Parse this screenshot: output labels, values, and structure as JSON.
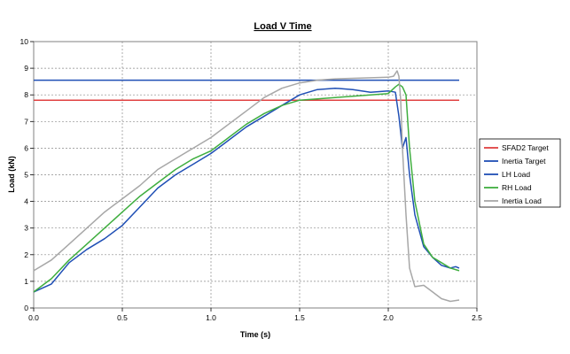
{
  "chart_data": {
    "type": "line",
    "title": "Load V Time",
    "xlabel": "Time (s)",
    "ylabel": "Load (kN)",
    "xlim": [
      0,
      2.5
    ],
    "ylim": [
      0,
      10
    ],
    "xticks": [
      "0.0",
      "0.5",
      "1.0",
      "1.5",
      "2.0",
      "2.5"
    ],
    "yticks": [
      "0",
      "1",
      "2",
      "3",
      "4",
      "5",
      "6",
      "7",
      "8",
      "9",
      "10"
    ],
    "grid": true,
    "legend_position": "right",
    "series": [
      {
        "name": "SFAD2 Target",
        "color": "#e04040",
        "x": [
          0,
          2.4
        ],
        "y": [
          7.8,
          7.8
        ]
      },
      {
        "name": "Inertia Target",
        "color": "#1f4fb5",
        "x": [
          0,
          2.4
        ],
        "y": [
          8.55,
          8.55
        ]
      },
      {
        "name": "LH Load",
        "color": "#1f4fb5",
        "x": [
          0,
          0.1,
          0.2,
          0.3,
          0.4,
          0.5,
          0.6,
          0.7,
          0.8,
          0.9,
          1.0,
          1.1,
          1.2,
          1.3,
          1.4,
          1.5,
          1.6,
          1.7,
          1.8,
          1.9,
          2.0,
          2.04,
          2.06,
          2.08,
          2.1,
          2.12,
          2.15,
          2.2,
          2.25,
          2.3,
          2.35,
          2.38,
          2.4
        ],
        "y": [
          0.6,
          0.9,
          1.7,
          2.2,
          2.6,
          3.1,
          3.8,
          4.5,
          5.0,
          5.4,
          5.8,
          6.3,
          6.8,
          7.2,
          7.6,
          8.0,
          8.2,
          8.25,
          8.2,
          8.1,
          8.15,
          8.1,
          7.2,
          6.0,
          6.4,
          5.0,
          3.5,
          2.3,
          1.9,
          1.6,
          1.5,
          1.55,
          1.5
        ]
      },
      {
        "name": "RH Load",
        "color": "#3fae3f",
        "x": [
          0,
          0.1,
          0.2,
          0.3,
          0.4,
          0.5,
          0.6,
          0.7,
          0.8,
          0.9,
          1.0,
          1.1,
          1.2,
          1.3,
          1.4,
          1.5,
          1.6,
          1.7,
          1.8,
          1.9,
          2.0,
          2.04,
          2.06,
          2.08,
          2.1,
          2.12,
          2.15,
          2.2,
          2.25,
          2.3,
          2.35,
          2.4
        ],
        "y": [
          0.6,
          1.1,
          1.8,
          2.4,
          3.0,
          3.6,
          4.2,
          4.7,
          5.2,
          5.6,
          5.9,
          6.4,
          6.9,
          7.3,
          7.6,
          7.8,
          7.85,
          7.9,
          7.95,
          8.0,
          8.05,
          8.3,
          8.4,
          8.3,
          8.0,
          6.0,
          4.0,
          2.4,
          1.9,
          1.7,
          1.5,
          1.4
        ]
      },
      {
        "name": "Inertia Load",
        "color": "#a7a7a7",
        "x": [
          0,
          0.1,
          0.2,
          0.3,
          0.4,
          0.5,
          0.6,
          0.7,
          0.8,
          0.9,
          1.0,
          1.1,
          1.2,
          1.3,
          1.4,
          1.5,
          1.6,
          1.7,
          1.8,
          1.9,
          2.0,
          2.03,
          2.05,
          2.06,
          2.07,
          2.08,
          2.1,
          2.12,
          2.15,
          2.2,
          2.25,
          2.3,
          2.35,
          2.4
        ],
        "y": [
          1.4,
          1.8,
          2.4,
          3.0,
          3.6,
          4.1,
          4.6,
          5.2,
          5.6,
          6.0,
          6.4,
          6.9,
          7.4,
          7.9,
          8.25,
          8.45,
          8.55,
          8.6,
          8.62,
          8.64,
          8.66,
          8.7,
          8.9,
          8.7,
          7.8,
          6.0,
          3.5,
          1.5,
          0.8,
          0.85,
          0.6,
          0.35,
          0.25,
          0.3
        ]
      }
    ]
  }
}
